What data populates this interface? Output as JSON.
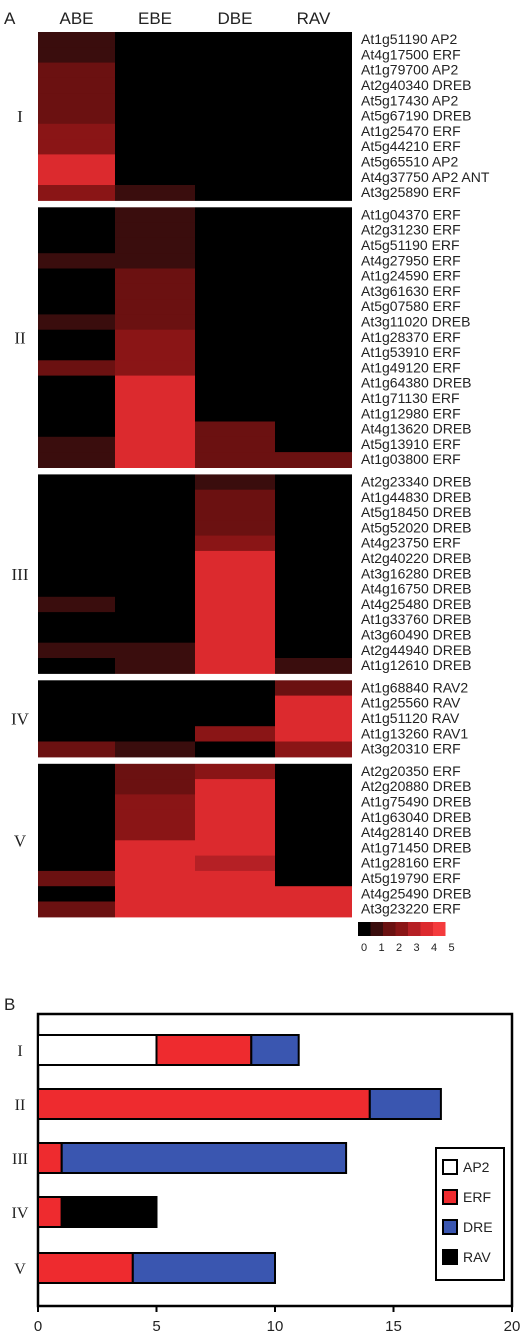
{
  "panel_a": {
    "panel_label": "A",
    "columns": [
      "ABE",
      "EBE",
      "DBE",
      "RAV"
    ],
    "scale": {
      "tick_labels": [
        "0",
        "1",
        "2",
        "3",
        "4",
        "5"
      ],
      "colors": [
        "#000000",
        "#3a0d0d",
        "#6b1111",
        "#8a1516",
        "#b52025",
        "#dc2a2e",
        "#f43b3d"
      ]
    },
    "groups": [
      {
        "label": "I",
        "rows": [
          {
            "label": "At1g51190 AP2",
            "values": [
              1,
              0,
              0,
              0
            ]
          },
          {
            "label": "At4g17500 ERF",
            "values": [
              1,
              0,
              0,
              0
            ]
          },
          {
            "label": "At1g79700 AP2",
            "values": [
              2,
              0,
              0,
              0
            ]
          },
          {
            "label": "At2g40340 DREB",
            "values": [
              2,
              0,
              0,
              0
            ]
          },
          {
            "label": "At5g17430 AP2",
            "values": [
              2,
              0,
              0,
              0
            ]
          },
          {
            "label": "At5g67190 DREB",
            "values": [
              2,
              0,
              0,
              0
            ]
          },
          {
            "label": "At1g25470 ERF",
            "values": [
              3,
              0,
              0,
              0
            ]
          },
          {
            "label": "At5g44210 ERF",
            "values": [
              3,
              0,
              0,
              0
            ]
          },
          {
            "label": "At5g65510 AP2",
            "values": [
              5,
              0,
              0,
              0
            ]
          },
          {
            "label": "At4g37750 AP2 ANT",
            "values": [
              5,
              0,
              0,
              0
            ]
          },
          {
            "label": "At3g25890 ERF",
            "values": [
              3,
              1,
              0,
              0
            ]
          }
        ]
      },
      {
        "label": "II",
        "rows": [
          {
            "label": "At1g04370 ERF",
            "values": [
              0,
              1,
              0,
              0
            ]
          },
          {
            "label": "At2g31230 ERF",
            "values": [
              0,
              1,
              0,
              0
            ]
          },
          {
            "label": "At5g51190 ERF",
            "values": [
              0,
              1,
              0,
              0
            ]
          },
          {
            "label": "At4g27950 ERF",
            "values": [
              1,
              1,
              0,
              0
            ]
          },
          {
            "label": "At1g24590 ERF",
            "values": [
              0,
              2,
              0,
              0
            ]
          },
          {
            "label": "At3g61630 ERF",
            "values": [
              0,
              2,
              0,
              0
            ]
          },
          {
            "label": "At5g07580 ERF",
            "values": [
              0,
              2,
              0,
              0
            ]
          },
          {
            "label": "At3g11020 DREB",
            "values": [
              1,
              2,
              0,
              0
            ]
          },
          {
            "label": "At1g28370 ERF",
            "values": [
              0,
              3,
              0,
              0
            ]
          },
          {
            "label": "At1g53910 ERF",
            "values": [
              0,
              3,
              0,
              0
            ]
          },
          {
            "label": "At1g49120 ERF",
            "values": [
              2,
              3,
              0,
              0
            ]
          },
          {
            "label": "At1g64380 DREB",
            "values": [
              0,
              5,
              0,
              0
            ]
          },
          {
            "label": "At1g71130 ERF",
            "values": [
              0,
              5,
              0,
              0
            ]
          },
          {
            "label": "At1g12980 ERF",
            "values": [
              0,
              5,
              0,
              0
            ]
          },
          {
            "label": "At4g13620 DREB",
            "values": [
              0,
              5,
              2,
              0
            ]
          },
          {
            "label": "At5g13910 ERF",
            "values": [
              1,
              5,
              2,
              0
            ]
          },
          {
            "label": "At1g03800 ERF",
            "values": [
              1,
              5,
              2,
              2
            ]
          }
        ]
      },
      {
        "label": "III",
        "rows": [
          {
            "label": "At2g23340 DREB",
            "values": [
              0,
              0,
              1,
              0
            ]
          },
          {
            "label": "At1g44830 DREB",
            "values": [
              0,
              0,
              2,
              0
            ]
          },
          {
            "label": "At5g18450 DREB",
            "values": [
              0,
              0,
              2,
              0
            ]
          },
          {
            "label": "At5g52020 DREB",
            "values": [
              0,
              0,
              2,
              0
            ]
          },
          {
            "label": "At4g23750 ERF",
            "values": [
              0,
              0,
              3,
              0
            ]
          },
          {
            "label": "At2g40220 DREB",
            "values": [
              0,
              0,
              5,
              0
            ]
          },
          {
            "label": "At3g16280 DREB",
            "values": [
              0,
              0,
              5,
              0
            ]
          },
          {
            "label": "At4g16750 DREB",
            "values": [
              0,
              0,
              5,
              0
            ]
          },
          {
            "label": "At4g25480 DREB",
            "values": [
              1,
              0,
              5,
              0
            ]
          },
          {
            "label": "At1g33760 DREB",
            "values": [
              0,
              0,
              5,
              0
            ]
          },
          {
            "label": "At3g60490 DREB",
            "values": [
              0,
              0,
              5,
              0
            ]
          },
          {
            "label": "At2g44940 DREB",
            "values": [
              1,
              1,
              5,
              0
            ]
          },
          {
            "label": "At1g12610 DREB",
            "values": [
              0,
              1,
              5,
              1
            ]
          }
        ]
      },
      {
        "label": "IV",
        "rows": [
          {
            "label": "At1g68840 RAV2",
            "values": [
              0,
              0,
              0,
              2
            ]
          },
          {
            "label": "At1g25560 RAV",
            "values": [
              0,
              0,
              0,
              5
            ]
          },
          {
            "label": "At1g51120 RAV",
            "values": [
              0,
              0,
              0,
              5
            ]
          },
          {
            "label": "At1g13260 RAV1",
            "values": [
              0,
              0,
              3,
              5
            ]
          },
          {
            "label": "At3g20310 ERF",
            "values": [
              2,
              1,
              0,
              3
            ]
          }
        ]
      },
      {
        "label": "V",
        "rows": [
          {
            "label": "At2g20350 ERF",
            "values": [
              0,
              2,
              3,
              0
            ]
          },
          {
            "label": "At2g20880 DREB",
            "values": [
              0,
              2,
              5,
              0
            ]
          },
          {
            "label": "At1g75490 DREB",
            "values": [
              0,
              3,
              5,
              0
            ]
          },
          {
            "label": "At1g63040 DREB",
            "values": [
              0,
              3,
              5,
              0
            ]
          },
          {
            "label": "At4g28140 DREB",
            "values": [
              0,
              3,
              5,
              0
            ]
          },
          {
            "label": "At1g71450 DREB",
            "values": [
              0,
              5,
              5,
              0
            ]
          },
          {
            "label": "At1g28160 ERF",
            "values": [
              0,
              5,
              4,
              0
            ]
          },
          {
            "label": "At5g19790 ERF",
            "values": [
              2,
              5,
              5,
              0
            ]
          },
          {
            "label": "At4g25490 DREB",
            "values": [
              0,
              5,
              5,
              5
            ]
          },
          {
            "label": "At3g23220 ERF",
            "values": [
              2,
              5,
              5,
              5
            ]
          }
        ]
      }
    ]
  },
  "chart_data": {
    "type": "bar",
    "orientation": "horizontal",
    "stacked": true,
    "panel_label": "B",
    "categories": [
      "I",
      "II",
      "III",
      "IV",
      "V"
    ],
    "series": [
      {
        "name": "AP2",
        "color": "#ffffff",
        "values": [
          5,
          0,
          0,
          0,
          0
        ]
      },
      {
        "name": "ERF",
        "color": "#ee2b2f",
        "values": [
          4,
          14,
          1,
          1,
          4
        ]
      },
      {
        "name": "DRE",
        "color": "#3a56b0",
        "values": [
          2,
          3,
          12,
          0,
          6
        ]
      },
      {
        "name": "RAV",
        "color": "#000000",
        "values": [
          0,
          0,
          0,
          4,
          0
        ]
      }
    ],
    "xlim": [
      0,
      20
    ],
    "x_ticks": [
      0,
      5,
      10,
      15,
      20
    ],
    "grid": false,
    "legend_position": "right"
  }
}
